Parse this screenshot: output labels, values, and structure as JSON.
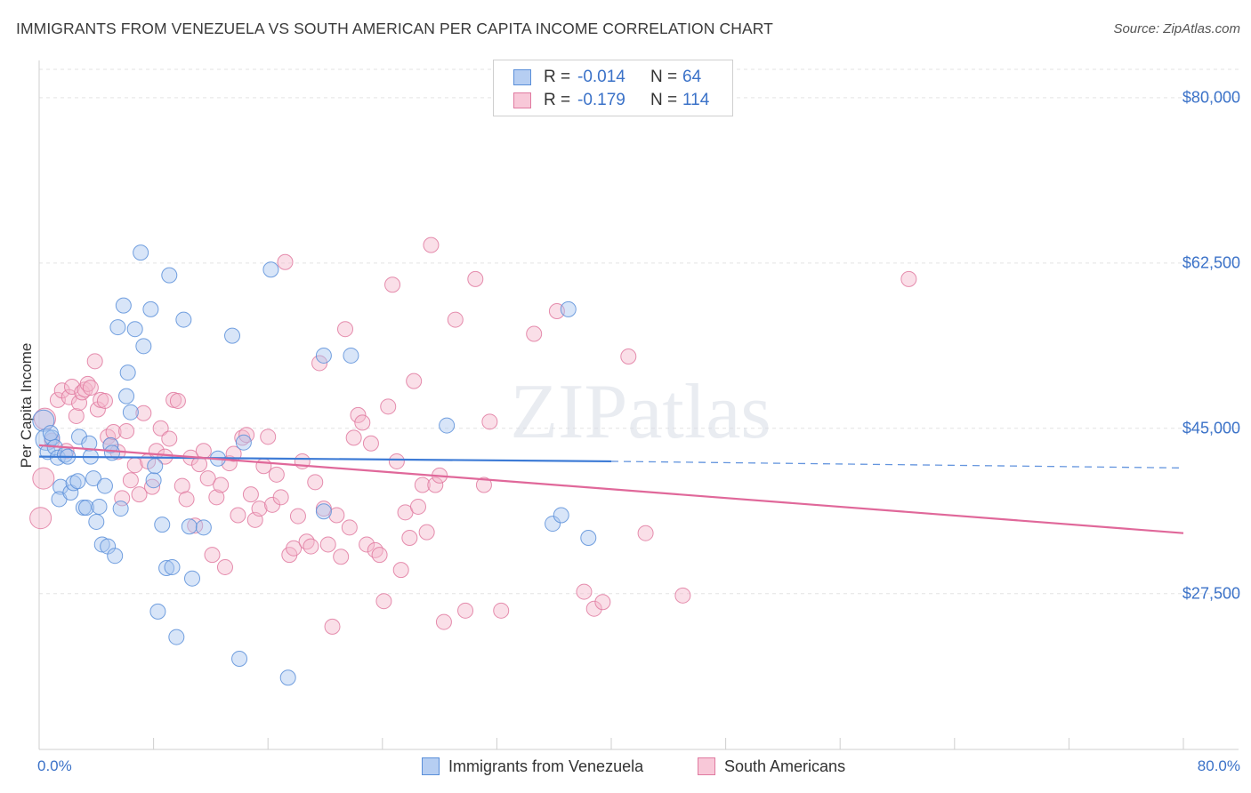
{
  "title": "IMMIGRANTS FROM VENEZUELA VS SOUTH AMERICAN PER CAPITA INCOME CORRELATION CHART",
  "source": "Source: ZipAtlas.com",
  "watermark": "ZIPatlas",
  "colors": {
    "blue": "#4a86d8",
    "blue_fill": "#a9c6ef",
    "pink": "#e0689a",
    "pink_fill": "#f5b8cd",
    "axis_text": "#3b72c8"
  },
  "stats": [
    {
      "r_label": "R =",
      "r_value": "-0.014",
      "n_label": "N =",
      "n_value": "64"
    },
    {
      "r_label": "R =",
      "r_value": "-0.179",
      "n_label": "N =",
      "n_value": "114"
    }
  ],
  "legend": [
    {
      "label": "Immigrants from Venezuela"
    },
    {
      "label": "South Americans"
    }
  ],
  "chart_data": {
    "type": "scatter",
    "title": "IMMIGRANTS FROM VENEZUELA VS SOUTH AMERICAN PER CAPITA INCOME CORRELATION CHART",
    "xlabel": "",
    "ylabel": "Per Capita Income",
    "x_tick_labels": [
      "0.0%",
      "80.0%"
    ],
    "y_tick_labels": [
      "$27,500",
      "$45,000",
      "$62,500",
      "$80,000"
    ],
    "xlim": [
      0,
      80
    ],
    "ylim": [
      11000,
      83000
    ],
    "grid": true,
    "legend_position": "bottom",
    "series": [
      {
        "name": "Immigrants from Venezuela",
        "r": -0.014,
        "n": 64,
        "trend": {
          "x0": 0,
          "y0": 42000,
          "x1": 40,
          "y1": 41500,
          "dashed_to_x": 80,
          "dashed_to_y": 40800
        },
        "points": [
          [
            0.3,
            45800
          ],
          [
            0.5,
            43800
          ],
          [
            0.6,
            42500
          ],
          [
            0.9,
            44000
          ],
          [
            1.1,
            43000
          ],
          [
            1.3,
            41900
          ],
          [
            1.5,
            38800
          ],
          [
            1.4,
            37500
          ],
          [
            1.8,
            42200
          ],
          [
            2.2,
            38200
          ],
          [
            2.4,
            39200
          ],
          [
            2.7,
            39400
          ],
          [
            2.8,
            44100
          ],
          [
            3.1,
            36600
          ],
          [
            3.3,
            36600
          ],
          [
            3.5,
            43400
          ],
          [
            3.6,
            42000
          ],
          [
            3.8,
            39700
          ],
          [
            4.0,
            35100
          ],
          [
            4.2,
            36700
          ],
          [
            4.4,
            32700
          ],
          [
            4.6,
            38900
          ],
          [
            4.8,
            32500
          ],
          [
            5.0,
            43200
          ],
          [
            5.1,
            42400
          ],
          [
            5.3,
            31500
          ],
          [
            5.5,
            55700
          ],
          [
            5.7,
            36500
          ],
          [
            5.9,
            58000
          ],
          [
            6.1,
            48400
          ],
          [
            6.2,
            50900
          ],
          [
            6.4,
            46700
          ],
          [
            6.7,
            55500
          ],
          [
            7.1,
            63600
          ],
          [
            7.3,
            53700
          ],
          [
            7.8,
            57600
          ],
          [
            8.0,
            39500
          ],
          [
            8.1,
            41000
          ],
          [
            8.3,
            25600
          ],
          [
            8.6,
            34800
          ],
          [
            8.9,
            30200
          ],
          [
            9.1,
            61200
          ],
          [
            9.3,
            30300
          ],
          [
            9.6,
            22900
          ],
          [
            10.1,
            56500
          ],
          [
            10.5,
            34600
          ],
          [
            10.7,
            29100
          ],
          [
            11.5,
            34500
          ],
          [
            12.5,
            41800
          ],
          [
            13.5,
            54800
          ],
          [
            14.3,
            43500
          ],
          [
            16.2,
            61800
          ],
          [
            17.4,
            18600
          ],
          [
            19.9,
            52700
          ],
          [
            19.9,
            36200
          ],
          [
            21.8,
            52700
          ],
          [
            28.5,
            45300
          ],
          [
            35.9,
            34900
          ],
          [
            36.5,
            35800
          ],
          [
            37.0,
            57600
          ],
          [
            38.4,
            33400
          ],
          [
            14.0,
            20600
          ],
          [
            0.8,
            44500
          ],
          [
            2.0,
            42000
          ]
        ]
      },
      {
        "name": "South Americans",
        "r": -0.179,
        "n": 114,
        "trend": {
          "x0": 0,
          "y0": 43200,
          "x1": 80,
          "y1": 33900
        },
        "points": [
          [
            0.1,
            35500
          ],
          [
            0.3,
            39700
          ],
          [
            0.4,
            46000
          ],
          [
            0.9,
            43700
          ],
          [
            1.3,
            48000
          ],
          [
            1.6,
            49000
          ],
          [
            1.9,
            42600
          ],
          [
            2.1,
            48300
          ],
          [
            2.3,
            49400
          ],
          [
            2.6,
            46300
          ],
          [
            2.8,
            47700
          ],
          [
            3.0,
            48800
          ],
          [
            3.2,
            49100
          ],
          [
            3.4,
            49700
          ],
          [
            3.6,
            49300
          ],
          [
            3.9,
            52100
          ],
          [
            4.1,
            47000
          ],
          [
            4.3,
            48000
          ],
          [
            4.6,
            47900
          ],
          [
            4.8,
            44100
          ],
          [
            5.0,
            43200
          ],
          [
            5.2,
            44600
          ],
          [
            5.5,
            42500
          ],
          [
            5.8,
            37600
          ],
          [
            6.1,
            44700
          ],
          [
            6.4,
            39500
          ],
          [
            6.7,
            41100
          ],
          [
            7.0,
            38000
          ],
          [
            7.3,
            46600
          ],
          [
            7.6,
            41500
          ],
          [
            7.9,
            38800
          ],
          [
            8.2,
            42600
          ],
          [
            8.5,
            45000
          ],
          [
            8.8,
            42000
          ],
          [
            9.1,
            43900
          ],
          [
            9.4,
            48000
          ],
          [
            9.7,
            47900
          ],
          [
            10.0,
            38900
          ],
          [
            10.3,
            37500
          ],
          [
            10.6,
            41900
          ],
          [
            10.9,
            34700
          ],
          [
            11.2,
            41200
          ],
          [
            11.5,
            42600
          ],
          [
            11.8,
            39700
          ],
          [
            12.1,
            31600
          ],
          [
            12.4,
            37700
          ],
          [
            12.7,
            39000
          ],
          [
            13.0,
            30300
          ],
          [
            13.3,
            41300
          ],
          [
            13.6,
            42300
          ],
          [
            13.9,
            35800
          ],
          [
            14.2,
            44000
          ],
          [
            14.5,
            44300
          ],
          [
            14.8,
            38000
          ],
          [
            15.1,
            35300
          ],
          [
            15.4,
            36500
          ],
          [
            15.7,
            41000
          ],
          [
            16.0,
            44100
          ],
          [
            16.3,
            36900
          ],
          [
            16.6,
            40100
          ],
          [
            16.9,
            37700
          ],
          [
            17.2,
            62600
          ],
          [
            17.5,
            31600
          ],
          [
            17.8,
            32300
          ],
          [
            18.1,
            35700
          ],
          [
            18.4,
            41500
          ],
          [
            18.7,
            33000
          ],
          [
            19.0,
            32500
          ],
          [
            19.3,
            39300
          ],
          [
            19.6,
            51900
          ],
          [
            19.9,
            36500
          ],
          [
            20.2,
            32700
          ],
          [
            20.5,
            24000
          ],
          [
            20.8,
            35800
          ],
          [
            21.1,
            31400
          ],
          [
            21.4,
            55500
          ],
          [
            21.7,
            34500
          ],
          [
            22.0,
            44000
          ],
          [
            22.3,
            46400
          ],
          [
            22.6,
            45600
          ],
          [
            22.9,
            32700
          ],
          [
            23.2,
            43400
          ],
          [
            23.5,
            32100
          ],
          [
            23.8,
            31600
          ],
          [
            24.1,
            26700
          ],
          [
            24.4,
            47300
          ],
          [
            24.7,
            60200
          ],
          [
            25.0,
            41500
          ],
          [
            25.3,
            30000
          ],
          [
            25.6,
            36100
          ],
          [
            25.9,
            33400
          ],
          [
            26.2,
            50000
          ],
          [
            26.5,
            36700
          ],
          [
            26.8,
            39000
          ],
          [
            27.1,
            34000
          ],
          [
            27.4,
            64400
          ],
          [
            27.7,
            39000
          ],
          [
            28.0,
            40000
          ],
          [
            28.3,
            24500
          ],
          [
            29.1,
            56500
          ],
          [
            29.8,
            25700
          ],
          [
            30.5,
            60800
          ],
          [
            31.1,
            39000
          ],
          [
            31.5,
            45700
          ],
          [
            32.3,
            25700
          ],
          [
            34.6,
            55000
          ],
          [
            36.2,
            57400
          ],
          [
            38.1,
            27700
          ],
          [
            38.8,
            25900
          ],
          [
            39.4,
            26600
          ],
          [
            41.2,
            52600
          ],
          [
            42.4,
            33900
          ],
          [
            45.0,
            27300
          ],
          [
            60.8,
            60800
          ]
        ]
      }
    ]
  }
}
